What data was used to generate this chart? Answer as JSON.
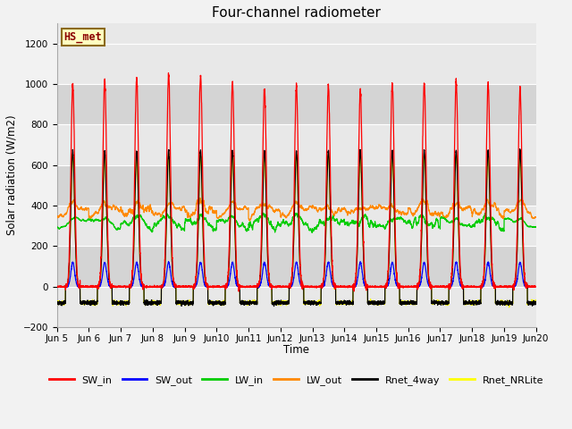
{
  "title": "Four-channel radiometer",
  "ylabel": "Solar radiation (W/m2)",
  "xlabel": "Time",
  "ylim": [
    -200,
    1300
  ],
  "yticks": [
    -200,
    0,
    200,
    400,
    600,
    800,
    1000,
    1200
  ],
  "start_day": 5,
  "end_day": 20,
  "n_days": 15,
  "pts_per_day": 288,
  "annotation_text": "HS_met",
  "legend_entries": [
    "SW_in",
    "SW_out",
    "LW_in",
    "LW_out",
    "Rnet_4way",
    "Rnet_NRLite"
  ],
  "legend_colors": [
    "#ff0000",
    "#0000ff",
    "#00cc00",
    "#ff8800",
    "#000000",
    "#ffff00"
  ],
  "fig_bg_color": "#f2f2f2",
  "plot_bg_color": "#e8e8e8",
  "alt_bg_color": "#d8d8d8",
  "grid_color": "#ffffff",
  "title_fontsize": 11,
  "sw_peaks": [
    1000,
    1020,
    1030,
    1045,
    1045,
    1005,
    975,
    990,
    990,
    975,
    1005,
    1005,
    1010,
    1005,
    970
  ],
  "lw_in_base": 310,
  "lw_out_base": 370,
  "sw_out_peak": 120,
  "rnet_peak": 670,
  "rnet_night": -80,
  "day_start": 0.27,
  "day_end": 0.73
}
